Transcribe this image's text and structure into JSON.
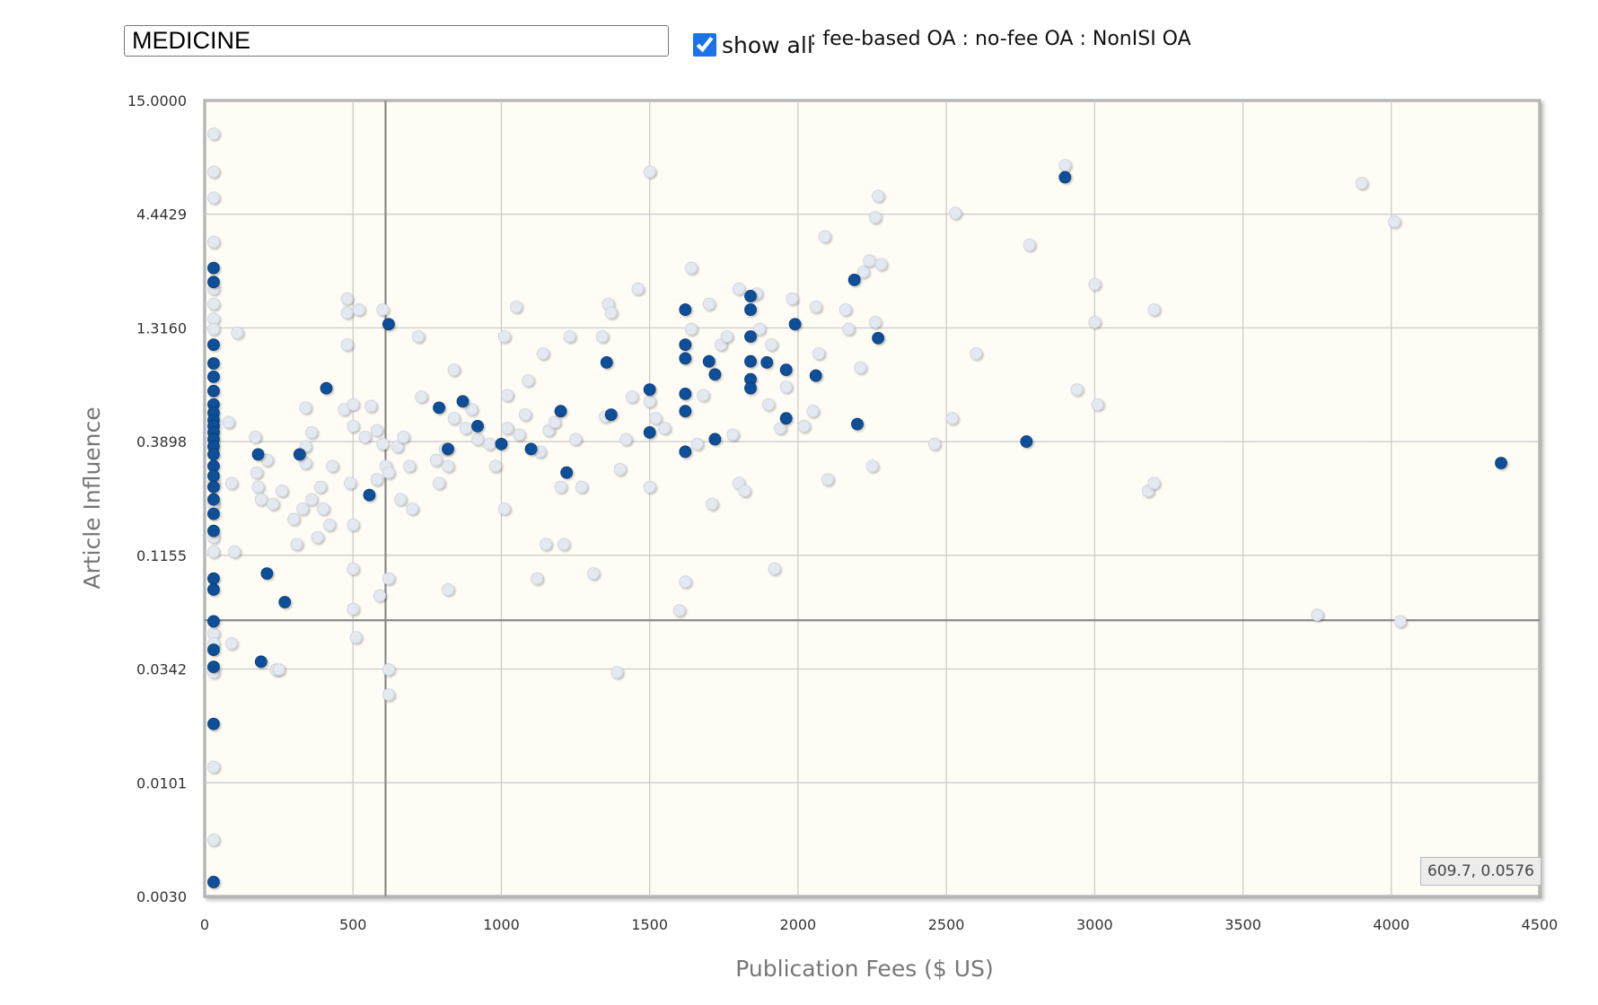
{
  "controls": {
    "field_value": "MEDICINE",
    "show_all_label": "show all",
    "show_all_checked": true,
    "filter_links": [
      ": fee-based OA",
      " : no-fee OA",
      " : NonISI OA"
    ]
  },
  "cursor_readout": "609.7, 0.0576",
  "colors": {
    "plot_background": "#fefcf4",
    "highlight_points": "#0d4f99",
    "other_points": "#e4e9f1",
    "checkbox": "#1a73e8"
  },
  "chart_data": {
    "type": "scatter",
    "title": "",
    "xlabel": "Publication Fees ($ US)",
    "ylabel": "Article Influence",
    "xlim": [
      0,
      4500
    ],
    "ylim": [
      0.003,
      15.0
    ],
    "yscale": "log",
    "x_ticks": [
      0,
      500,
      1000,
      1500,
      2000,
      2500,
      3000,
      3500,
      4000,
      4500
    ],
    "y_tick_labels": [
      "0.0030",
      "0.0101",
      "0.0342",
      "0.1155",
      "0.3898",
      "1.3160",
      "4.4429",
      "15.0000"
    ],
    "grid": true,
    "crosshair": {
      "x": 609.7,
      "y": 0.0576
    },
    "series": [
      {
        "role": "highlighted",
        "points": [
          [
            30,
            2.5
          ],
          [
            30,
            2.15
          ],
          [
            30,
            1.1
          ],
          [
            30,
            0.9
          ],
          [
            30,
            0.78
          ],
          [
            30,
            0.67
          ],
          [
            30,
            0.58
          ],
          [
            30,
            0.53
          ],
          [
            30,
            0.49
          ],
          [
            30,
            0.46
          ],
          [
            30,
            0.43
          ],
          [
            30,
            0.4
          ],
          [
            30,
            0.37
          ],
          [
            30,
            0.34
          ],
          [
            30,
            0.3
          ],
          [
            30,
            0.27
          ],
          [
            30,
            0.24
          ],
          [
            30,
            0.21
          ],
          [
            30,
            0.18
          ],
          [
            30,
            0.15
          ],
          [
            30,
            0.09
          ],
          [
            30,
            0.08
          ],
          [
            30,
            0.057
          ],
          [
            30,
            0.042
          ],
          [
            30,
            0.035
          ],
          [
            30,
            0.019
          ],
          [
            30,
            0.0035
          ],
          [
            180,
            0.34
          ],
          [
            210,
            0.095
          ],
          [
            270,
            0.07
          ],
          [
            190,
            0.037
          ],
          [
            320,
            0.34
          ],
          [
            410,
            0.69
          ],
          [
            555,
            0.22
          ],
          [
            620,
            1.37
          ],
          [
            790,
            0.56
          ],
          [
            820,
            0.36
          ],
          [
            870,
            0.6
          ],
          [
            920,
            0.46
          ],
          [
            1000,
            0.38
          ],
          [
            1100,
            0.36
          ],
          [
            1200,
            0.54
          ],
          [
            1220,
            0.28
          ],
          [
            1355,
            0.91
          ],
          [
            1370,
            0.52
          ],
          [
            1500,
            0.68
          ],
          [
            1500,
            0.43
          ],
          [
            1620,
            1.6
          ],
          [
            1620,
            1.1
          ],
          [
            1620,
            0.95
          ],
          [
            1620,
            0.65
          ],
          [
            1620,
            0.54
          ],
          [
            1620,
            0.35
          ],
          [
            1700,
            0.92
          ],
          [
            1720,
            0.8
          ],
          [
            1720,
            0.4
          ],
          [
            1840,
            1.85
          ],
          [
            1840,
            1.6
          ],
          [
            1840,
            1.2
          ],
          [
            1840,
            0.92
          ],
          [
            1840,
            0.76
          ],
          [
            1840,
            0.69
          ],
          [
            1895,
            0.91
          ],
          [
            1960,
            0.5
          ],
          [
            1960,
            0.84
          ],
          [
            1990,
            1.37
          ],
          [
            2060,
            0.79
          ],
          [
            2190,
            2.2
          ],
          [
            2200,
            0.47
          ],
          [
            2270,
            1.18
          ],
          [
            2770,
            0.39
          ],
          [
            2900,
            6.6
          ],
          [
            4370,
            0.31
          ]
        ]
      },
      {
        "role": "other",
        "points": [
          [
            30,
            10.5
          ],
          [
            30,
            7.0
          ],
          [
            30,
            5.3
          ],
          [
            30,
            3.3
          ],
          [
            30,
            2.0
          ],
          [
            30,
            1.7
          ],
          [
            30,
            1.45
          ],
          [
            30,
            1.3
          ],
          [
            30,
            0.25
          ],
          [
            30,
            0.2
          ],
          [
            30,
            0.14
          ],
          [
            30,
            0.12
          ],
          [
            30,
            0.05
          ],
          [
            30,
            0.045
          ],
          [
            30,
            0.033
          ],
          [
            30,
            0.012
          ],
          [
            30,
            0.0055
          ],
          [
            80,
            0.48
          ],
          [
            90,
            0.25
          ],
          [
            100,
            0.12
          ],
          [
            110,
            1.25
          ],
          [
            90,
            0.045
          ],
          [
            170,
            0.41
          ],
          [
            175,
            0.28
          ],
          [
            180,
            0.24
          ],
          [
            190,
            0.21
          ],
          [
            210,
            0.32
          ],
          [
            230,
            0.2
          ],
          [
            240,
            0.034
          ],
          [
            250,
            0.034
          ],
          [
            260,
            0.23
          ],
          [
            300,
            0.17
          ],
          [
            310,
            0.13
          ],
          [
            330,
            0.19
          ],
          [
            340,
            0.37
          ],
          [
            340,
            0.31
          ],
          [
            340,
            0.56
          ],
          [
            360,
            0.43
          ],
          [
            360,
            0.21
          ],
          [
            380,
            0.14
          ],
          [
            390,
            0.24
          ],
          [
            400,
            0.19
          ],
          [
            420,
            0.16
          ],
          [
            430,
            0.3
          ],
          [
            470,
            0.55
          ],
          [
            480,
            1.1
          ],
          [
            480,
            1.8
          ],
          [
            480,
            1.55
          ],
          [
            490,
            0.25
          ],
          [
            500,
            0.16
          ],
          [
            500,
            0.065
          ],
          [
            500,
            0.58
          ],
          [
            500,
            0.46
          ],
          [
            500,
            0.1
          ],
          [
            510,
            0.048
          ],
          [
            520,
            1.6
          ],
          [
            540,
            0.41
          ],
          [
            560,
            0.57
          ],
          [
            580,
            0.44
          ],
          [
            580,
            0.26
          ],
          [
            590,
            0.075
          ],
          [
            600,
            0.38
          ],
          [
            600,
            1.6
          ],
          [
            610,
            0.3
          ],
          [
            620,
            0.28
          ],
          [
            620,
            0.09
          ],
          [
            620,
            0.034
          ],
          [
            620,
            0.026
          ],
          [
            650,
            0.37
          ],
          [
            660,
            0.21
          ],
          [
            670,
            0.41
          ],
          [
            690,
            0.3
          ],
          [
            700,
            0.19
          ],
          [
            720,
            1.2
          ],
          [
            730,
            0.63
          ],
          [
            780,
            0.32
          ],
          [
            790,
            0.25
          ],
          [
            810,
            0.36
          ],
          [
            820,
            0.3
          ],
          [
            820,
            0.08
          ],
          [
            840,
            0.5
          ],
          [
            840,
            0.84
          ],
          [
            880,
            0.45
          ],
          [
            900,
            0.55
          ],
          [
            920,
            0.4
          ],
          [
            960,
            0.38
          ],
          [
            980,
            0.3
          ],
          [
            1010,
            0.19
          ],
          [
            1010,
            1.2
          ],
          [
            1020,
            0.45
          ],
          [
            1020,
            0.64
          ],
          [
            1050,
            1.65
          ],
          [
            1060,
            0.42
          ],
          [
            1080,
            0.52
          ],
          [
            1090,
            0.75
          ],
          [
            1120,
            0.09
          ],
          [
            1130,
            0.35
          ],
          [
            1140,
            1.0
          ],
          [
            1150,
            0.13
          ],
          [
            1160,
            0.44
          ],
          [
            1180,
            0.48
          ],
          [
            1200,
            0.24
          ],
          [
            1210,
            0.13
          ],
          [
            1230,
            1.2
          ],
          [
            1250,
            0.4
          ],
          [
            1270,
            0.24
          ],
          [
            1310,
            0.095
          ],
          [
            1340,
            1.2
          ],
          [
            1350,
            0.51
          ],
          [
            1360,
            1.7
          ],
          [
            1370,
            1.55
          ],
          [
            1390,
            0.033
          ],
          [
            1400,
            0.29
          ],
          [
            1420,
            0.4
          ],
          [
            1440,
            0.63
          ],
          [
            1460,
            2.0
          ],
          [
            1500,
            7.0
          ],
          [
            1500,
            0.24
          ],
          [
            1500,
            0.6
          ],
          [
            1520,
            0.5
          ],
          [
            1550,
            0.45
          ],
          [
            1620,
            0.087
          ],
          [
            1600,
            0.064
          ],
          [
            1640,
            2.5
          ],
          [
            1640,
            1.3
          ],
          [
            1660,
            0.38
          ],
          [
            1680,
            0.64
          ],
          [
            1700,
            1.7
          ],
          [
            1710,
            0.2
          ],
          [
            1740,
            1.1
          ],
          [
            1760,
            1.2
          ],
          [
            1780,
            0.42
          ],
          [
            1800,
            0.25
          ],
          [
            1800,
            2.0
          ],
          [
            1820,
            0.23
          ],
          [
            1860,
            1.9
          ],
          [
            1870,
            1.3
          ],
          [
            1900,
            0.58
          ],
          [
            1910,
            1.1
          ],
          [
            1920,
            0.1
          ],
          [
            1940,
            0.45
          ],
          [
            1960,
            0.7
          ],
          [
            1980,
            1.8
          ],
          [
            2020,
            0.46
          ],
          [
            2050,
            0.54
          ],
          [
            2060,
            1.65
          ],
          [
            2070,
            1.0
          ],
          [
            2090,
            3.5
          ],
          [
            2100,
            0.26
          ],
          [
            2160,
            1.6
          ],
          [
            2170,
            1.3
          ],
          [
            2210,
            0.86
          ],
          [
            2220,
            2.4
          ],
          [
            2240,
            2.7
          ],
          [
            2250,
            0.3
          ],
          [
            2260,
            1.4
          ],
          [
            2260,
            4.3
          ],
          [
            2270,
            5.4
          ],
          [
            2280,
            2.6
          ],
          [
            2460,
            0.38
          ],
          [
            2520,
            0.5
          ],
          [
            2530,
            4.5
          ],
          [
            2600,
            1.0
          ],
          [
            2780,
            3.2
          ],
          [
            2900,
            7.5
          ],
          [
            2940,
            0.68
          ],
          [
            3000,
            2.1
          ],
          [
            3000,
            1.4
          ],
          [
            3010,
            0.58
          ],
          [
            3180,
            0.23
          ],
          [
            3200,
            0.25
          ],
          [
            3200,
            1.6
          ],
          [
            3750,
            0.061
          ],
          [
            3900,
            6.2
          ],
          [
            4010,
            4.1
          ],
          [
            4030,
            0.057
          ]
        ]
      }
    ]
  }
}
